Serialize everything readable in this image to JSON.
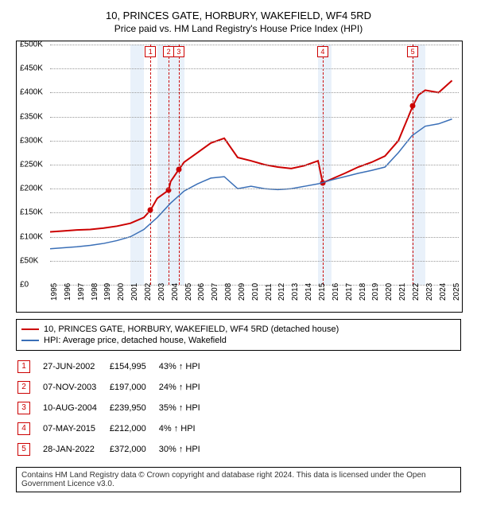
{
  "title": "10, PRINCES GATE, HORBURY, WAKEFIELD, WF4 5RD",
  "subtitle": "Price paid vs. HM Land Registry's House Price Index (HPI)",
  "chart": {
    "type": "line",
    "ylabel_prefix": "£",
    "ylim": [
      0,
      500000
    ],
    "ytick_step": 50000,
    "yticks": [
      "£0",
      "£50K",
      "£100K",
      "£150K",
      "£200K",
      "£250K",
      "£300K",
      "£350K",
      "£400K",
      "£450K",
      "£500K"
    ],
    "x_start_year": 1995,
    "x_end_year": 2025,
    "xticks": [
      "1995",
      "1996",
      "1997",
      "1998",
      "1999",
      "2000",
      "2001",
      "2002",
      "2003",
      "2004",
      "2005",
      "2006",
      "2007",
      "2008",
      "2009",
      "2010",
      "2011",
      "2012",
      "2013",
      "2014",
      "2015",
      "2016",
      "2017",
      "2018",
      "2019",
      "2020",
      "2021",
      "2022",
      "2023",
      "2024",
      "2025"
    ],
    "grid_color": "#999999",
    "background_color": "#ffffff",
    "series": [
      {
        "name": "10, PRINCES GATE, HORBURY, WAKEFIELD, WF4 5RD (detached house)",
        "color": "#cc0000",
        "width": 2,
        "points": [
          [
            1995,
            110000
          ],
          [
            1996,
            112000
          ],
          [
            1997,
            114000
          ],
          [
            1998,
            115000
          ],
          [
            1999,
            118000
          ],
          [
            2000,
            122000
          ],
          [
            2001,
            128000
          ],
          [
            2002.0,
            140000
          ],
          [
            2002.49,
            154995
          ],
          [
            2003.0,
            180000
          ],
          [
            2003.85,
            197000
          ],
          [
            2004.0,
            215000
          ],
          [
            2004.61,
            239950
          ],
          [
            2005,
            255000
          ],
          [
            2006,
            275000
          ],
          [
            2007,
            295000
          ],
          [
            2008,
            305000
          ],
          [
            2009,
            265000
          ],
          [
            2010,
            258000
          ],
          [
            2011,
            250000
          ],
          [
            2012,
            245000
          ],
          [
            2013,
            242000
          ],
          [
            2014,
            248000
          ],
          [
            2015.0,
            258000
          ],
          [
            2015.35,
            212000
          ],
          [
            2016,
            220000
          ],
          [
            2017,
            232000
          ],
          [
            2018,
            245000
          ],
          [
            2019,
            255000
          ],
          [
            2020,
            268000
          ],
          [
            2021,
            300000
          ],
          [
            2022.07,
            372000
          ],
          [
            2022.5,
            395000
          ],
          [
            2023,
            405000
          ],
          [
            2024,
            400000
          ],
          [
            2025,
            425000
          ]
        ]
      },
      {
        "name": "HPI: Average price, detached house, Wakefield",
        "color": "#3a6fb7",
        "width": 1.5,
        "points": [
          [
            1995,
            75000
          ],
          [
            1996,
            77000
          ],
          [
            1997,
            79000
          ],
          [
            1998,
            82000
          ],
          [
            1999,
            86000
          ],
          [
            2000,
            92000
          ],
          [
            2001,
            100000
          ],
          [
            2002,
            115000
          ],
          [
            2003,
            140000
          ],
          [
            2004,
            170000
          ],
          [
            2005,
            195000
          ],
          [
            2006,
            210000
          ],
          [
            2007,
            222000
          ],
          [
            2008,
            225000
          ],
          [
            2009,
            200000
          ],
          [
            2010,
            205000
          ],
          [
            2011,
            200000
          ],
          [
            2012,
            198000
          ],
          [
            2013,
            200000
          ],
          [
            2014,
            205000
          ],
          [
            2015,
            210000
          ],
          [
            2016,
            218000
          ],
          [
            2017,
            225000
          ],
          [
            2018,
            232000
          ],
          [
            2019,
            238000
          ],
          [
            2020,
            245000
          ],
          [
            2021,
            275000
          ],
          [
            2022,
            310000
          ],
          [
            2023,
            330000
          ],
          [
            2024,
            335000
          ],
          [
            2025,
            345000
          ]
        ]
      }
    ],
    "shaded_bands_years": [
      [
        2001,
        2002
      ],
      [
        2003,
        2004
      ],
      [
        2004,
        2005
      ],
      [
        2015,
        2016
      ],
      [
        2022,
        2023
      ]
    ],
    "sale_markers": [
      {
        "n": "1",
        "year": 2002.49,
        "price": 154995
      },
      {
        "n": "2",
        "year": 2003.85,
        "price": 197000
      },
      {
        "n": "3",
        "year": 2004.61,
        "price": 239950
      },
      {
        "n": "4",
        "year": 2015.35,
        "price": 212000
      },
      {
        "n": "5",
        "year": 2022.07,
        "price": 372000
      }
    ]
  },
  "legend": [
    {
      "color": "#cc0000",
      "label": "10, PRINCES GATE, HORBURY, WAKEFIELD, WF4 5RD (detached house)"
    },
    {
      "color": "#3a6fb7",
      "label": "HPI: Average price, detached house, Wakefield"
    }
  ],
  "sales": [
    {
      "n": "1",
      "date": "27-JUN-2002",
      "price": "£154,995",
      "delta": "43% ↑ HPI"
    },
    {
      "n": "2",
      "date": "07-NOV-2003",
      "price": "£197,000",
      "delta": "24% ↑ HPI"
    },
    {
      "n": "3",
      "date": "10-AUG-2004",
      "price": "£239,950",
      "delta": "35% ↑ HPI"
    },
    {
      "n": "4",
      "date": "07-MAY-2015",
      "price": "£212,000",
      "delta": "4% ↑ HPI"
    },
    {
      "n": "5",
      "date": "28-JAN-2022",
      "price": "£372,000",
      "delta": "30% ↑ HPI"
    }
  ],
  "footnote": "Contains HM Land Registry data © Crown copyright and database right 2024. This data is licensed under the Open Government Licence v3.0."
}
